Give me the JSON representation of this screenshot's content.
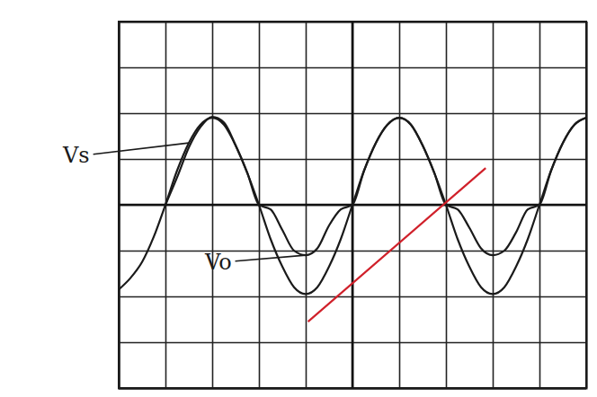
{
  "chart_data": {
    "type": "line",
    "xlim": [
      -5,
      5
    ],
    "ylim": [
      -4,
      4
    ],
    "xticks": [
      -5,
      -4,
      -3,
      -2,
      -1,
      0,
      1,
      2,
      3,
      4,
      5
    ],
    "yticks": [
      -4,
      -3,
      -2,
      -1,
      0,
      1,
      2,
      3,
      4
    ],
    "grid": true,
    "tick_labels": false,
    "series": [
      {
        "name": "Vs",
        "color": "#1a1a1a",
        "line_style": "solid",
        "x": [
          -5,
          -4.75,
          -4.5,
          -4.25,
          -4,
          -3.75,
          -3.5,
          -3.25,
          -3,
          -2.75,
          -2.5,
          -2.25,
          -2,
          -1.75,
          -1.5,
          -1.25,
          -1,
          -0.75,
          -0.5,
          -0.25,
          0,
          0.25,
          0.5,
          0.75,
          1,
          1.25,
          1.5,
          1.75,
          2,
          2.25,
          2.5,
          2.75,
          3,
          3.25,
          3.5,
          3.75,
          4,
          4.25,
          4.5,
          4.75,
          5
        ],
        "values": [
          -1.85,
          -1.6,
          -1.25,
          -0.7,
          0,
          0.75,
          1.35,
          1.75,
          1.9,
          1.75,
          1.3,
          0.7,
          0,
          -0.75,
          -1.35,
          -1.8,
          -1.95,
          -1.8,
          -1.35,
          -0.75,
          0,
          0.75,
          1.35,
          1.75,
          1.9,
          1.75,
          1.3,
          0.7,
          0,
          -0.75,
          -1.35,
          -1.8,
          -1.95,
          -1.8,
          -1.35,
          -0.75,
          0,
          0.75,
          1.35,
          1.75,
          1.9
        ]
      },
      {
        "name": "Vo",
        "color": "#1a1a1a",
        "line_style": "solid",
        "x": [
          -4,
          -3.75,
          -3.5,
          -3.25,
          -3,
          -2.75,
          -2.5,
          -2.25,
          -2,
          -1.75,
          -1.5,
          -1.25,
          -1,
          -0.75,
          -0.5,
          -0.25,
          0,
          0.25,
          0.5,
          0.75,
          1,
          1.25,
          1.5,
          1.75,
          2,
          2.25,
          2.5,
          2.75,
          3,
          3.25,
          3.5,
          3.75,
          4,
          4.25,
          4.5,
          4.75,
          5
        ],
        "values": [
          0,
          0.6,
          1.25,
          1.7,
          1.92,
          1.8,
          1.3,
          0.7,
          0,
          -0.1,
          -0.55,
          -1.0,
          -1.1,
          -0.95,
          -0.45,
          -0.1,
          0,
          0.75,
          1.35,
          1.75,
          1.9,
          1.75,
          1.3,
          0.7,
          0,
          -0.1,
          -0.5,
          -0.95,
          -1.1,
          -1.0,
          -0.6,
          -0.1,
          0,
          0.75,
          1.35,
          1.75,
          1.9
        ]
      },
      {
        "color": "#d0202a",
        "line_style": "solid",
        "x": [
          -0.95,
          2.85
        ],
        "values": [
          -2.55,
          0.8
        ]
      }
    ]
  }
}
